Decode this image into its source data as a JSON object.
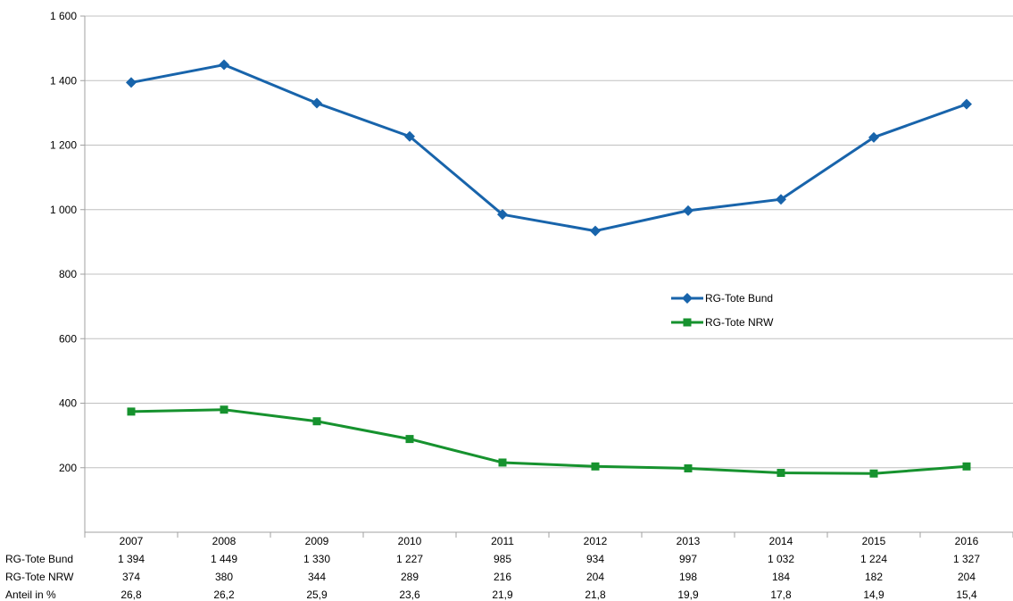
{
  "chart_data": {
    "type": "line",
    "categories": [
      "2007",
      "2008",
      "2009",
      "2010",
      "2011",
      "2012",
      "2013",
      "2014",
      "2015",
      "2016"
    ],
    "series": [
      {
        "name": "RG-Tote Bund",
        "values": [
          1394,
          1449,
          1330,
          1227,
          985,
          934,
          997,
          1032,
          1224,
          1327
        ],
        "color": "#1864ab",
        "marker": "diamond"
      },
      {
        "name": "RG-Tote NRW",
        "values": [
          374,
          380,
          344,
          289,
          216,
          204,
          198,
          184,
          182,
          204
        ],
        "color": "#16922e",
        "marker": "square"
      }
    ],
    "ylim": [
      0,
      1600
    ],
    "yticks": [
      200,
      400,
      600,
      800,
      1000,
      1200,
      1400,
      1600
    ],
    "ytick_labels": [
      "200",
      "400",
      "600",
      "800",
      "1 000",
      "1 200",
      "1 400",
      "1 600"
    ],
    "grid": "horizontal",
    "legend_placement": "center-right",
    "data_table": {
      "rows": [
        {
          "label": "RG-Tote Bund",
          "cells": [
            "1 394",
            "1 449",
            "1 330",
            "1 227",
            "985",
            "934",
            "997",
            "1 032",
            "1 224",
            "1 327"
          ]
        },
        {
          "label": "RG-Tote NRW",
          "cells": [
            "374",
            "380",
            "344",
            "289",
            "216",
            "204",
            "198",
            "184",
            "182",
            "204"
          ]
        },
        {
          "label": "Anteil in %",
          "cells": [
            "26,8",
            "26,2",
            "25,9",
            "23,6",
            "21,9",
            "21,8",
            "19,9",
            "17,8",
            "14,9",
            "15,4"
          ]
        }
      ]
    },
    "gridline_color": "#c0c0c0",
    "axis_color": "#a0a0a0"
  }
}
